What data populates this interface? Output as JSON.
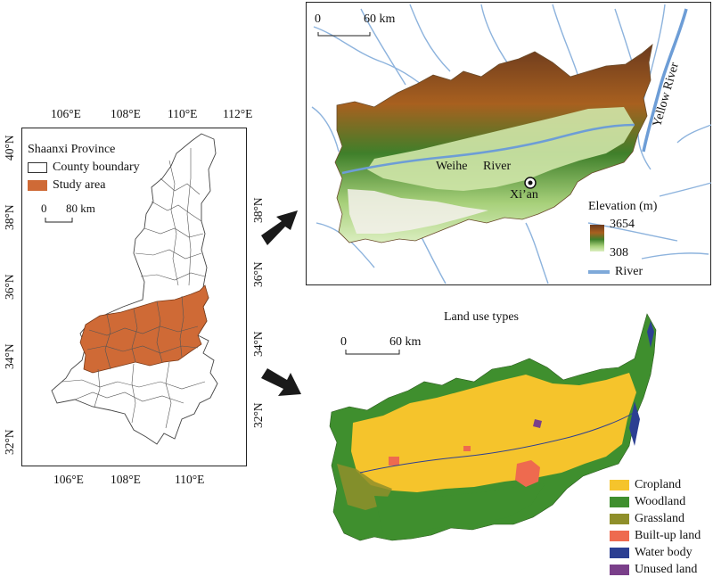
{
  "locator": {
    "top_lon_ticks": [
      "106°E",
      "108°E",
      "110°E",
      "112°E"
    ],
    "bottom_lon_ticks": [
      "106°E",
      "108°E",
      "110°E"
    ],
    "left_lat_ticks": [
      "40°N",
      "38°N",
      "36°N",
      "34°N",
      "32°N"
    ],
    "right_lat_ticks": [
      "38°N",
      "36°N",
      "34°N",
      "32°N"
    ],
    "legend_title": "Shaanxi Province",
    "legend_county": "County boundary",
    "legend_study": "Study area",
    "scale_zero": "0",
    "scale_label": "80 km",
    "study_color": "#cf6a36"
  },
  "elevation": {
    "scale_zero": "0",
    "scale_label": "60 km",
    "river_yellow": "Yellow River",
    "river_weihe_1": "Weihe",
    "river_weihe_2": "River",
    "city": "Xi’an",
    "legend_title": "Elevation (m)",
    "elev_max": "3654",
    "elev_min": "308",
    "legend_river": "River",
    "river_color": "#7ea9d9"
  },
  "landuse": {
    "title": "Land use types",
    "scale_zero": "0",
    "scale_label": "60 km",
    "classes": [
      {
        "label": "Cropland",
        "color": "#f5c42c"
      },
      {
        "label": "Woodland",
        "color": "#3f8f2e"
      },
      {
        "label": "Grassland",
        "color": "#8f8f2a"
      },
      {
        "label": "Built-up land",
        "color": "#ee6a4f"
      },
      {
        "label": "Water body",
        "color": "#2c3f92"
      },
      {
        "label": "Unused land",
        "color": "#7a3f8a"
      }
    ]
  }
}
